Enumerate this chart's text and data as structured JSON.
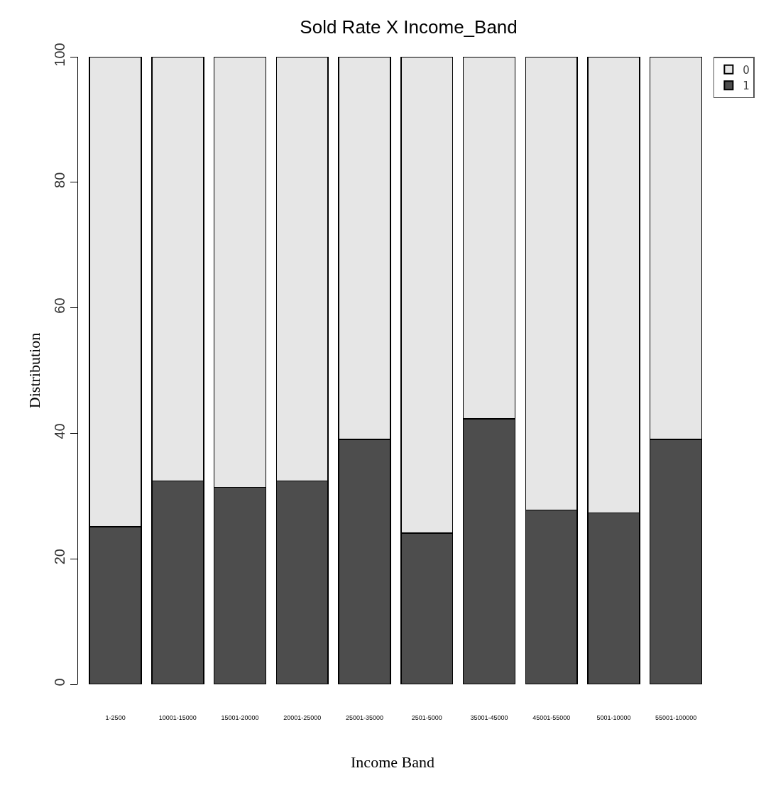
{
  "chart_data": {
    "type": "bar",
    "title": "Sold Rate X Income_Band",
    "xlabel": "Income Band",
    "ylabel": "Distribution",
    "categories": [
      "1-2500",
      "10001-15000",
      "15001-20000",
      "20001-25000",
      "25001-35000",
      "2501-5000",
      "35001-45000",
      "45001-55000",
      "5001-10000",
      "55001-100000"
    ],
    "series": [
      {
        "name": "1",
        "color": "#4d4d4d",
        "values": [
          25.1,
          32.4,
          31.4,
          32.4,
          39.0,
          24.1,
          42.3,
          27.8,
          27.3,
          39.0
        ]
      },
      {
        "name": "0",
        "color": "#e6e6e6",
        "values": [
          74.9,
          67.6,
          68.6,
          67.6,
          61.0,
          75.9,
          57.7,
          72.2,
          72.7,
          61.0
        ]
      }
    ],
    "stacked": true,
    "ylim": [
      0,
      100
    ],
    "yticks": [
      0,
      20,
      40,
      60,
      80,
      100
    ],
    "grid": false,
    "legend": "top right"
  }
}
